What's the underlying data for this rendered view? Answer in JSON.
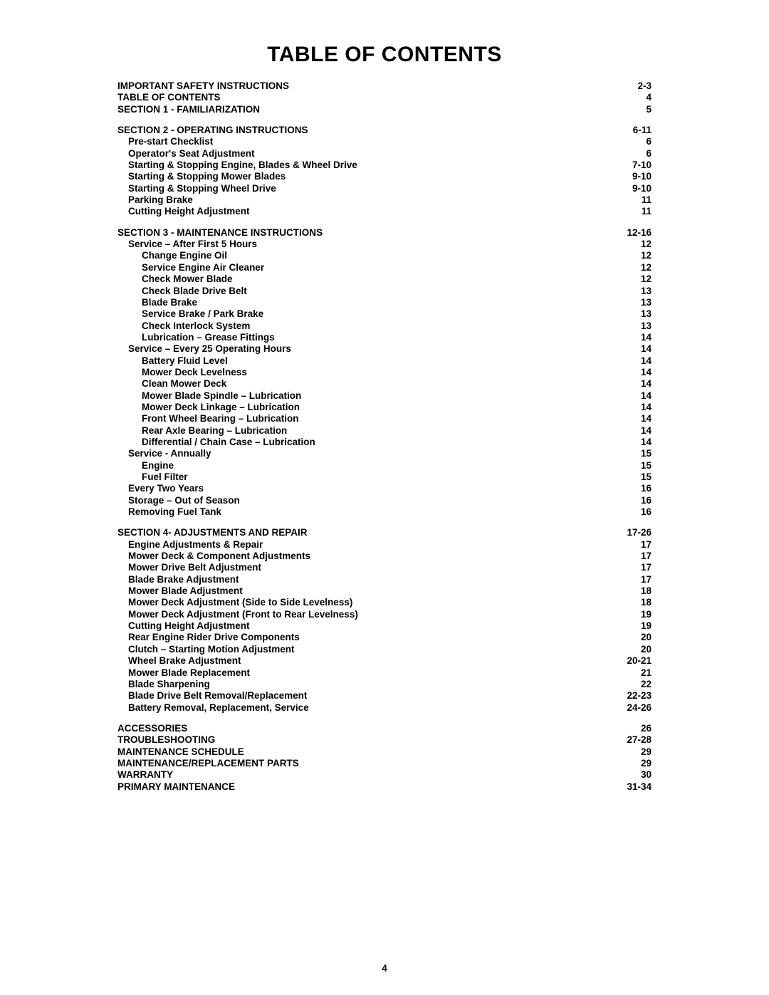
{
  "title": "TABLE OF CONTENTS",
  "page_number": "4",
  "text_color": "#000000",
  "background_color": "#ffffff",
  "font_family": "Arial",
  "title_fontsize": 30,
  "body_fontsize": 13.5,
  "groups": [
    {
      "entries": [
        {
          "label": "IMPORTANT SAFETY INSTRUCTIONS",
          "page": "2-3",
          "indent": 0
        },
        {
          "label": "TABLE OF CONTENTS",
          "page": "4",
          "indent": 0
        },
        {
          "label": "SECTION 1 - FAMILIARIZATION",
          "page": "5",
          "indent": 0
        }
      ]
    },
    {
      "entries": [
        {
          "label": "SECTION 2 - OPERATING INSTRUCTIONS",
          "page": "6-11",
          "indent": 0
        },
        {
          "label": "Pre-start Checklist",
          "page": "6",
          "indent": 1
        },
        {
          "label": "Operator's Seat Adjustment",
          "page": "6",
          "indent": 1
        },
        {
          "label": "Starting & Stopping Engine, Blades & Wheel Drive",
          "page": "7-10",
          "indent": 1
        },
        {
          "label": "Starting & Stopping Mower Blades",
          "page": "9-10",
          "indent": 1
        },
        {
          "label": "Starting & Stopping Wheel Drive",
          "page": "9-10",
          "indent": 1
        },
        {
          "label": "Parking Brake",
          "page": "11",
          "indent": 1
        },
        {
          "label": "Cutting Height Adjustment",
          "page": "11",
          "indent": 1
        }
      ]
    },
    {
      "entries": [
        {
          "label": "SECTION 3 - MAINTENANCE INSTRUCTIONS",
          "page": "12-16",
          "indent": 0
        },
        {
          "label": "Service – After First 5 Hours",
          "page": "12",
          "indent": 1
        },
        {
          "label": "Change Engine Oil",
          "page": "12",
          "indent": 2
        },
        {
          "label": "Service Engine Air Cleaner",
          "page": "12",
          "indent": 2
        },
        {
          "label": "Check Mower Blade",
          "page": "12",
          "indent": 2
        },
        {
          "label": "Check Blade Drive Belt",
          "page": "13",
          "indent": 2
        },
        {
          "label": "Blade Brake",
          "page": "13",
          "indent": 2
        },
        {
          "label": "Service Brake / Park Brake",
          "page": "13",
          "indent": 2
        },
        {
          "label": "Check Interlock System",
          "page": "13",
          "indent": 2
        },
        {
          "label": "Lubrication – Grease Fittings",
          "page": "14",
          "indent": 2
        },
        {
          "label": "Service – Every 25 Operating Hours",
          "page": "14",
          "indent": 1
        },
        {
          "label": "Battery Fluid Level",
          "page": "14",
          "indent": 2
        },
        {
          "label": "Mower Deck Levelness",
          "page": "14",
          "indent": 2
        },
        {
          "label": "Clean Mower Deck",
          "page": "14",
          "indent": 2
        },
        {
          "label": "Mower Blade Spindle – Lubrication",
          "page": "14",
          "indent": 2
        },
        {
          "label": "Mower Deck Linkage – Lubrication",
          "page": "14",
          "indent": 2
        },
        {
          "label": "Front Wheel Bearing – Lubrication",
          "page": "14",
          "indent": 2
        },
        {
          "label": "Rear Axle Bearing – Lubrication",
          "page": "14",
          "indent": 2
        },
        {
          "label": "Differential / Chain Case – Lubrication",
          "page": "14",
          "indent": 2
        },
        {
          "label": "Service - Annually",
          "page": "15",
          "indent": 1
        },
        {
          "label": "Engine",
          "page": "15",
          "indent": 2
        },
        {
          "label": "Fuel Filter",
          "page": "15",
          "indent": 2
        },
        {
          "label": "Every Two Years",
          "page": "16",
          "indent": 1
        },
        {
          "label": "Storage – Out of Season",
          "page": "16",
          "indent": 1
        },
        {
          "label": "Removing Fuel Tank",
          "page": "16",
          "indent": 1
        }
      ]
    },
    {
      "entries": [
        {
          "label": "SECTION 4- ADJUSTMENTS AND REPAIR",
          "page": "17-26",
          "indent": 0
        },
        {
          "label": "Engine Adjustments & Repair",
          "page": "17",
          "indent": 1
        },
        {
          "label": "Mower Deck & Component Adjustments",
          "page": "17",
          "indent": 1
        },
        {
          "label": "Mower Drive Belt Adjustment",
          "page": "17",
          "indent": 1
        },
        {
          "label": "Blade Brake Adjustment",
          "page": "17",
          "indent": 1
        },
        {
          "label": "Mower Blade Adjustment",
          "page": "18",
          "indent": 1
        },
        {
          "label": "Mower Deck Adjustment (Side to Side Levelness)",
          "page": "18",
          "indent": 1
        },
        {
          "label": "Mower Deck Adjustment (Front to Rear Levelness)",
          "page": "19",
          "indent": 1
        },
        {
          "label": "Cutting Height Adjustment",
          "page": "19",
          "indent": 1
        },
        {
          "label": "Rear Engine Rider Drive Components",
          "page": "20",
          "indent": 1
        },
        {
          "label": "Clutch – Starting Motion Adjustment",
          "page": "20",
          "indent": 1
        },
        {
          "label": "Wheel Brake Adjustment",
          "page": "20-21",
          "indent": 1
        },
        {
          "label": "Mower Blade Replacement",
          "page": "21",
          "indent": 1
        },
        {
          "label": "Blade Sharpening",
          "page": "22",
          "indent": 1
        },
        {
          "label": "Blade Drive Belt Removal/Replacement",
          "page": "22-23",
          "indent": 1
        },
        {
          "label": "Battery Removal, Replacement, Service",
          "page": "24-26",
          "indent": 1
        }
      ]
    },
    {
      "entries": [
        {
          "label": "ACCESSORIES",
          "page": "26",
          "indent": 0
        },
        {
          "label": "TROUBLESHOOTING",
          "page": "27-28",
          "indent": 0
        },
        {
          "label": "MAINTENANCE SCHEDULE",
          "page": "29",
          "indent": 0
        },
        {
          "label": "MAINTENANCE/REPLACEMENT PARTS",
          "page": "29",
          "indent": 0
        },
        {
          "label": "WARRANTY",
          "page": "30",
          "indent": 0
        },
        {
          "label": "PRIMARY MAINTENANCE",
          "page": "31-34",
          "indent": 0
        }
      ]
    }
  ]
}
